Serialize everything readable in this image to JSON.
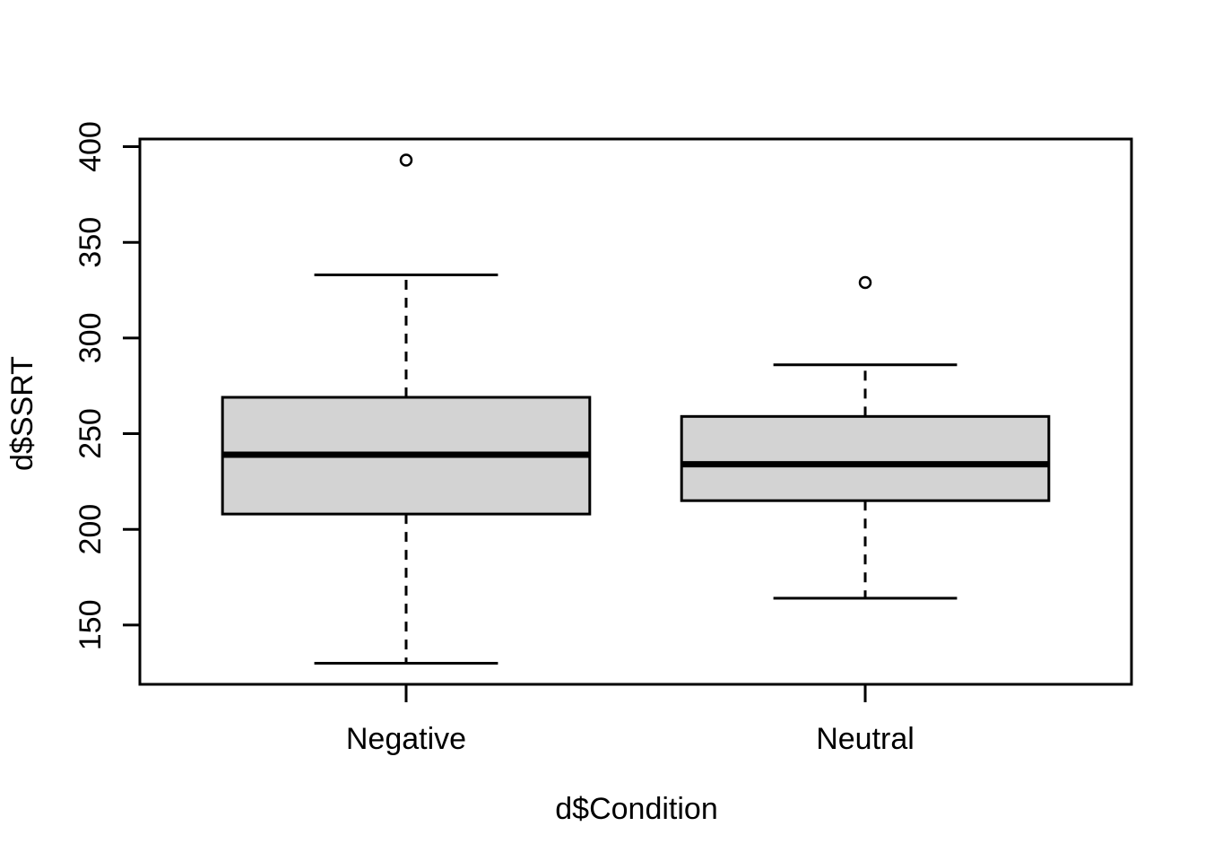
{
  "chart_data": {
    "type": "boxplot",
    "title": "",
    "xlabel": "d$Condition",
    "ylabel": "d$SSRT",
    "categories": [
      "Negative",
      "Neutral"
    ],
    "yticks": [
      150,
      200,
      250,
      300,
      350,
      400
    ],
    "ytick_labels": [
      "150",
      "200",
      "250",
      "300",
      "350",
      "400"
    ],
    "ylim": [
      119,
      404
    ],
    "grid": false,
    "legend": "none",
    "box_fill": "#d3d3d3",
    "line_color": "#000000",
    "background": "#ffffff",
    "series": [
      {
        "name": "Negative",
        "lower_whisker": 130,
        "q1": 208,
        "median": 239,
        "q3": 269,
        "upper_whisker": 333,
        "outliers": [
          393
        ]
      },
      {
        "name": "Neutral",
        "lower_whisker": 164,
        "q1": 215,
        "median": 234,
        "q3": 259,
        "upper_whisker": 286,
        "outliers": [
          329
        ]
      }
    ]
  }
}
